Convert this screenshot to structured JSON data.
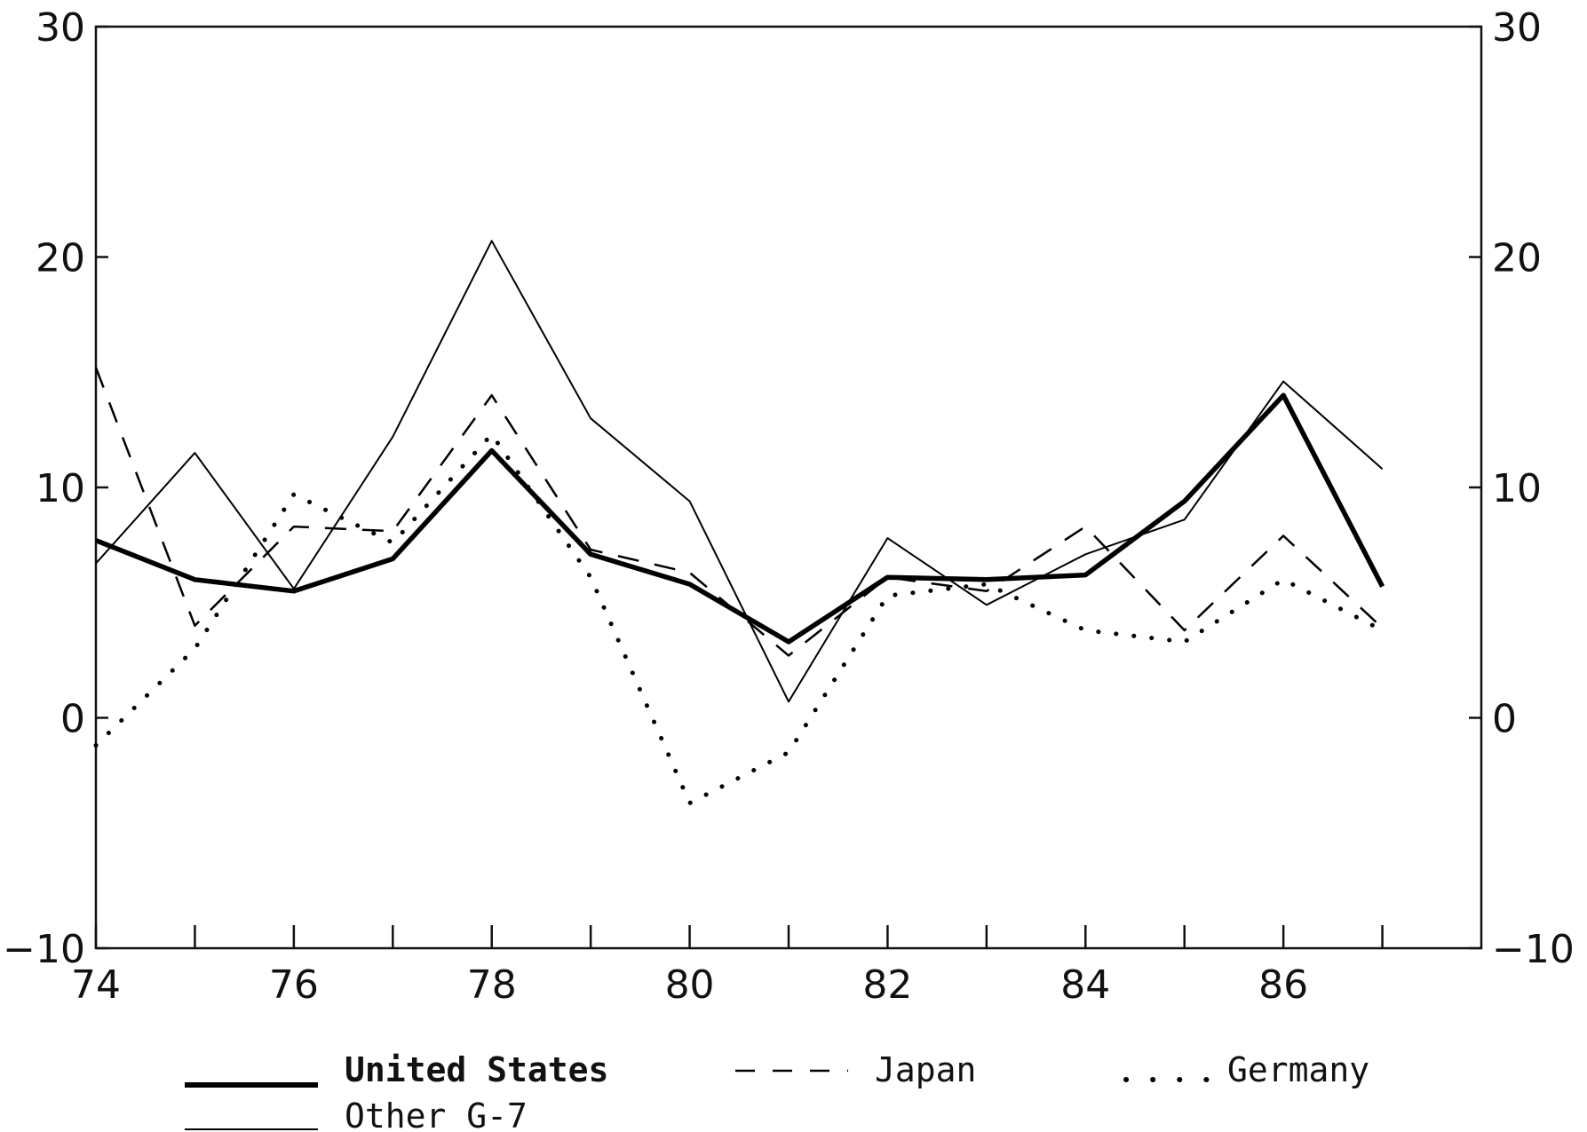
{
  "chart_data": {
    "type": "line",
    "title": "",
    "xlabel": "",
    "ylabel": "",
    "x": [
      74,
      75,
      76,
      77,
      78,
      79,
      80,
      81,
      82,
      83,
      84,
      85,
      86,
      87
    ],
    "x_ticks": [
      "74",
      "76",
      "78",
      "80",
      "82",
      "84",
      "86"
    ],
    "xlim": [
      74,
      88
    ],
    "ylim": [
      -10,
      30
    ],
    "y_ticks": [
      "-10",
      "0",
      "10",
      "20",
      "30"
    ],
    "grid": false,
    "legend_position": "bottom",
    "series": [
      {
        "name": "United States",
        "style": "thick-solid",
        "color": "#000000",
        "values": [
          7.7,
          6.0,
          5.5,
          6.9,
          11.6,
          7.1,
          5.8,
          3.3,
          6.1,
          6.0,
          6.2,
          9.4,
          14.0,
          5.7
        ]
      },
      {
        "name": "Japan",
        "style": "dashed",
        "color": "#000000",
        "values": [
          15.2,
          4.0,
          8.3,
          8.1,
          14.0,
          7.3,
          6.3,
          2.7,
          6.1,
          5.5,
          8.3,
          3.8,
          7.9,
          3.9
        ]
      },
      {
        "name": "Germany",
        "style": "dotted",
        "color": "#000000",
        "values": [
          -1.2,
          3.0,
          9.7,
          7.6,
          12.3,
          6.1,
          -3.7,
          -1.5,
          5.3,
          5.8,
          3.8,
          3.3,
          6.0,
          3.8
        ]
      },
      {
        "name": "Other G-7",
        "style": "thin-solid",
        "color": "#000000",
        "values": [
          6.7,
          11.5,
          5.6,
          12.2,
          20.7,
          13.0,
          9.4,
          0.7,
          7.8,
          4.9,
          7.1,
          8.6,
          14.6,
          10.8
        ]
      }
    ],
    "legend": {
      "us_label": "United States",
      "japan_label": "Japan",
      "germany_label": "Germany",
      "other_label": "Other G-7"
    }
  }
}
